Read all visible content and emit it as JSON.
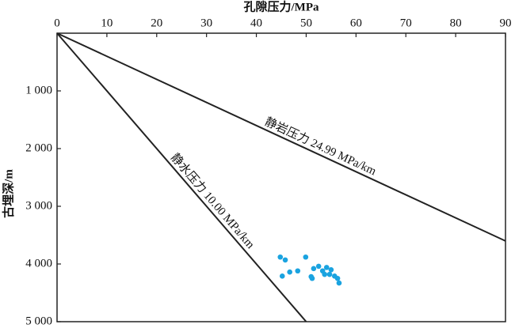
{
  "chart_data": {
    "type": "scatter",
    "x_label": "孔隙压力/MPa",
    "y_label": "古埋深/m",
    "xlim": [
      0,
      90
    ],
    "xticks": [
      0,
      10,
      20,
      30,
      40,
      50,
      60,
      70,
      80,
      90
    ],
    "ylim": [
      0,
      5000
    ],
    "yticks": [
      {
        "value": 1000,
        "label": "1 000"
      },
      {
        "value": 2000,
        "label": "2 000"
      },
      {
        "value": 3000,
        "label": "3 000"
      },
      {
        "value": 4000,
        "label": "4 000"
      },
      {
        "value": 5000,
        "label": "5 000"
      }
    ],
    "y_inverted": true,
    "series": [
      {
        "type": "line",
        "label": "静岩压力 24.99 MPa/km",
        "color": "#222222",
        "x": [
          0,
          90
        ],
        "values": [
          0,
          3601
        ]
      },
      {
        "type": "line",
        "label": "静水压力 10.00 MPa/km",
        "color": "#222222",
        "x": [
          0,
          50
        ],
        "values": [
          0,
          5000
        ]
      },
      {
        "type": "scatter",
        "color": "#1aa3e0",
        "x": [
          44.8,
          45.8,
          49.9,
          45.2,
          46.7,
          48.3,
          51.0,
          51.5,
          52.5,
          53.3,
          54.1,
          54.7,
          55.0,
          55.7,
          56.3,
          56.6,
          51.2,
          53.7
        ],
        "values": [
          3880,
          3930,
          3880,
          4210,
          4140,
          4120,
          4220,
          4080,
          4040,
          4120,
          4060,
          4180,
          4100,
          4210,
          4250,
          4330,
          4250,
          4180
        ]
      }
    ]
  }
}
